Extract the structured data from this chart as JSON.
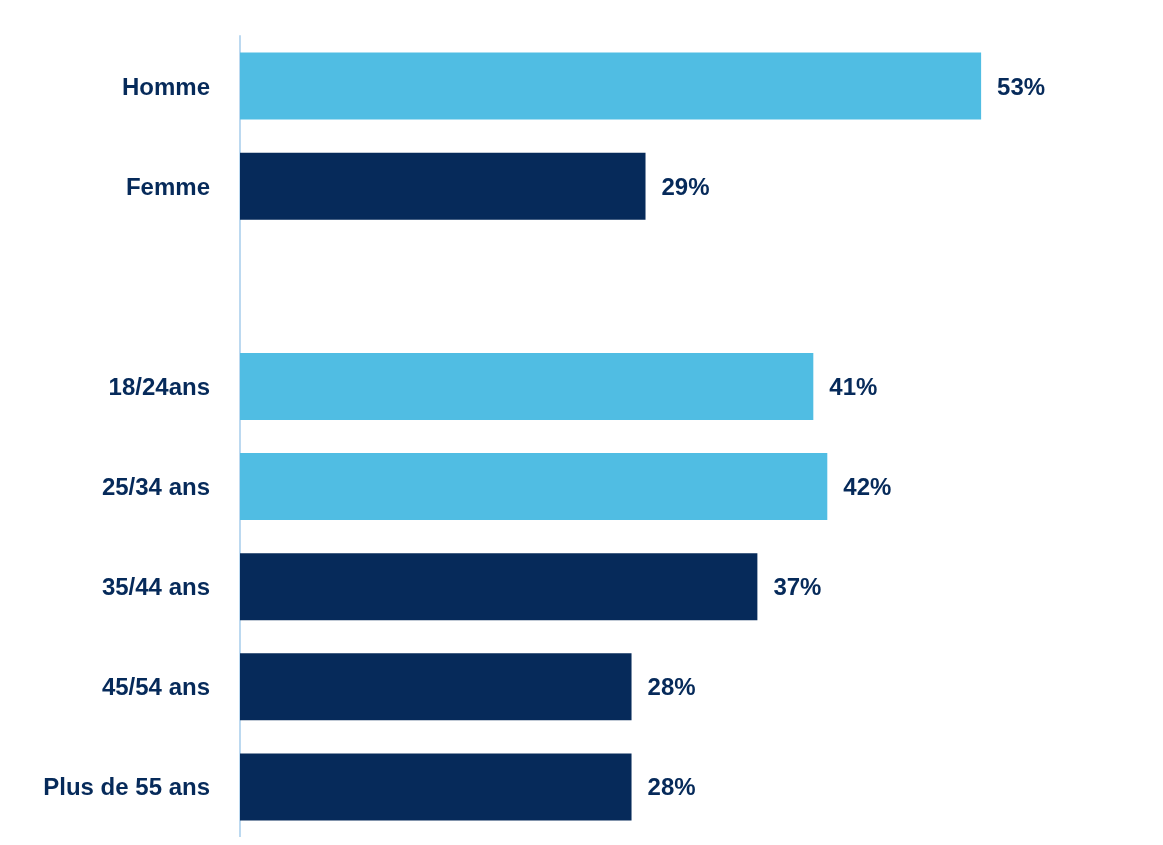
{
  "chart_data": {
    "type": "bar",
    "orientation": "horizontal",
    "categories": [
      "Homme",
      "Femme",
      null,
      "18/24ans",
      "25/34 ans",
      "35/44 ans",
      "45/54 ans",
      "Plus de 55 ans"
    ],
    "values": [
      53,
      29,
      null,
      41,
      42,
      37,
      28,
      28
    ],
    "colors": [
      "#50bde3",
      "#062a5a",
      null,
      "#50bde3",
      "#50bde3",
      "#062a5a",
      "#062a5a",
      "#062a5a"
    ],
    "value_labels": [
      "53%",
      "29%",
      null,
      "41%",
      "42%",
      "37%",
      "28%",
      "28%"
    ]
  }
}
